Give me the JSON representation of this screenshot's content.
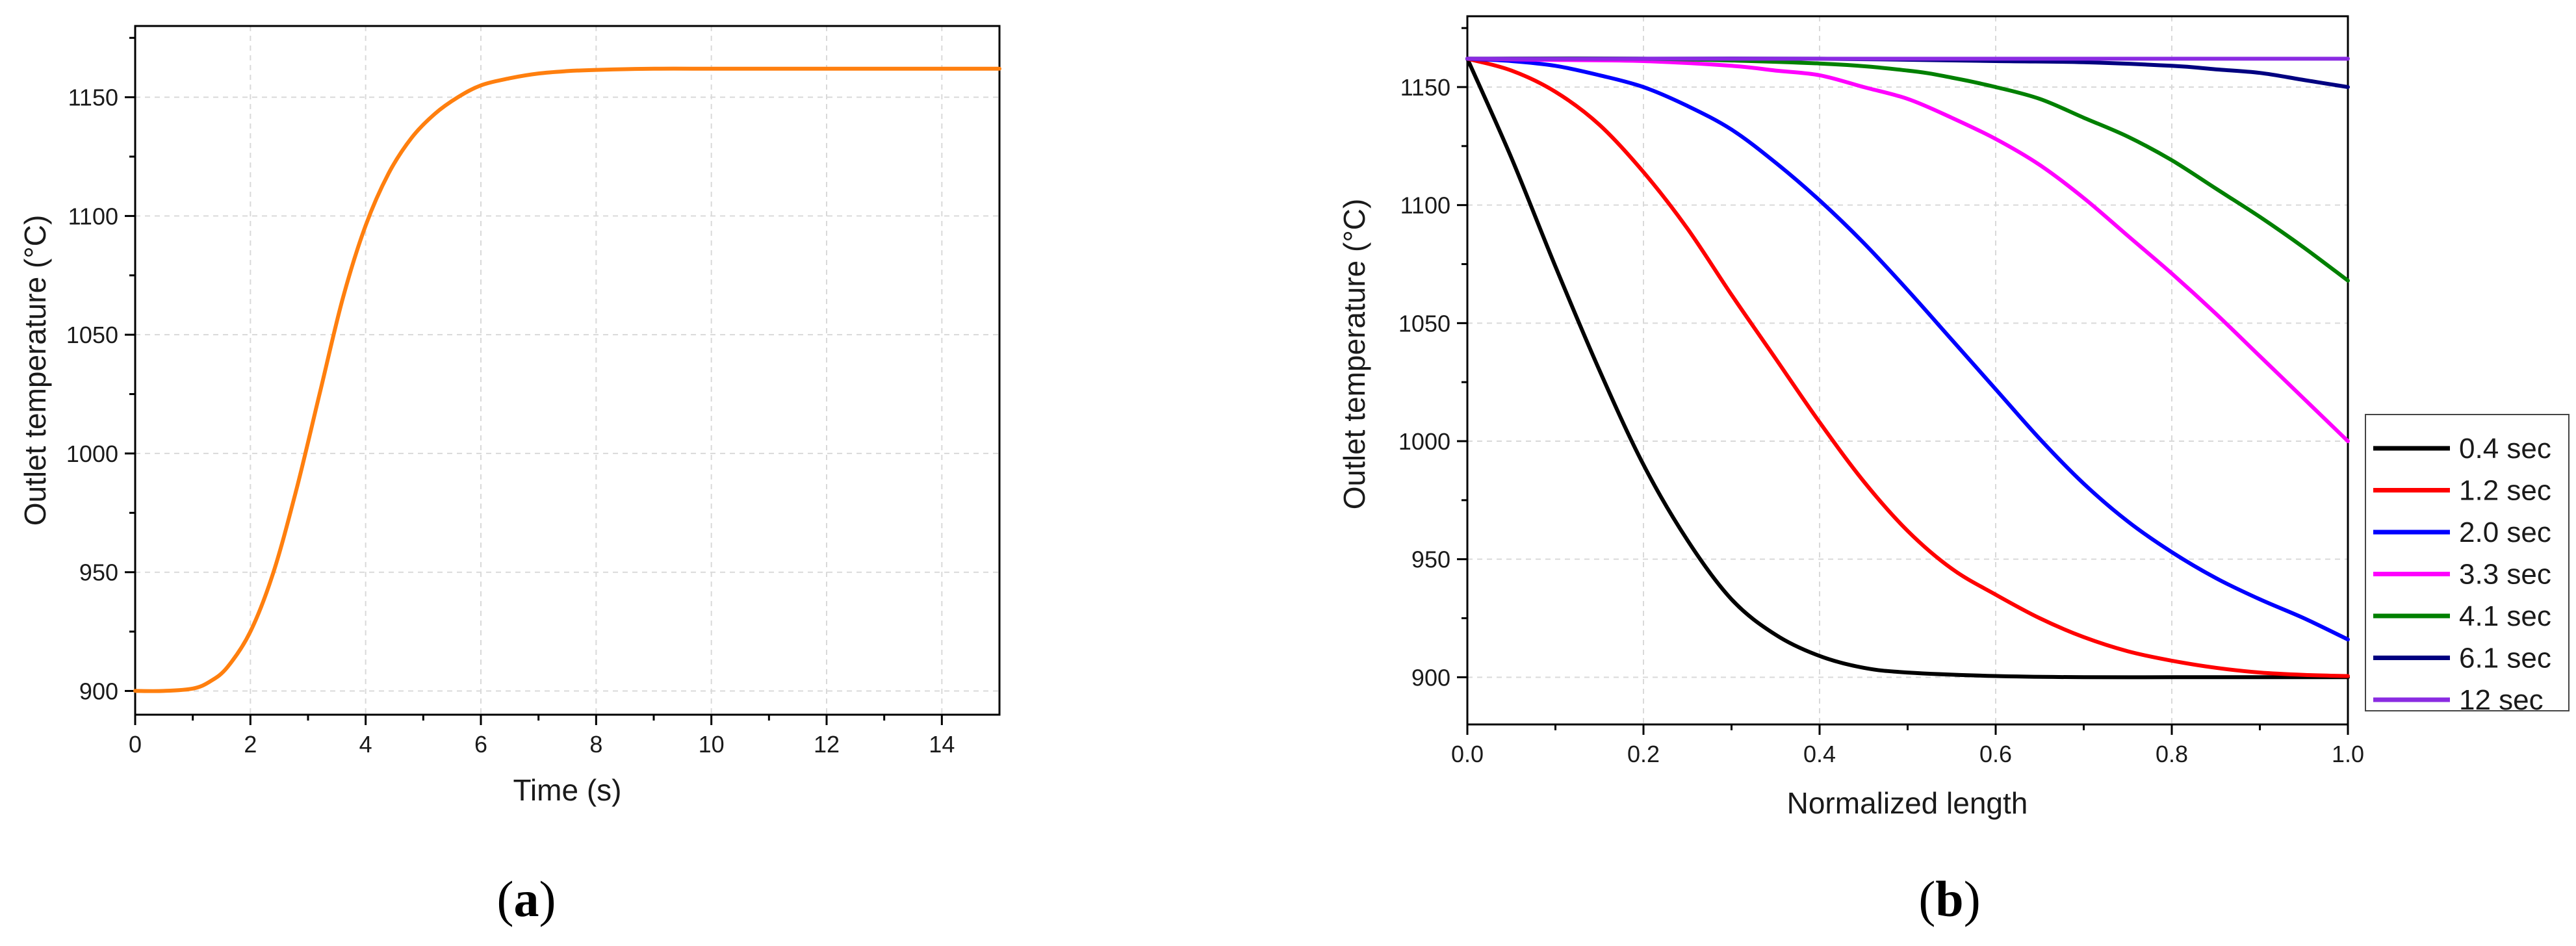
{
  "chart_data": [
    {
      "type": "line",
      "panel_label": "a",
      "xlabel": "Time (s)",
      "ylabel": "Outlet temperature (°C)",
      "xlim": [
        0,
        15
      ],
      "ylim": [
        890,
        1180
      ],
      "xticks": [
        0,
        2,
        4,
        6,
        8,
        10,
        12,
        14
      ],
      "xtick_labels": [
        "0",
        "2",
        "4",
        "6",
        "8",
        "10",
        "12",
        "14"
      ],
      "yticks": [
        900,
        950,
        1000,
        1050,
        1100,
        1150
      ],
      "ytick_labels": [
        "900",
        "950",
        "1000",
        "1050",
        "1100",
        "1150"
      ],
      "grid": true,
      "series": [
        {
          "name": "Outlet temperature",
          "color": "#ff7f0e",
          "x": [
            0,
            0.5,
            1.0,
            1.3,
            1.6,
            2.0,
            2.4,
            2.8,
            3.2,
            3.6,
            4.0,
            4.4,
            4.8,
            5.2,
            5.6,
            6.0,
            6.5,
            7.0,
            7.5,
            8.0,
            9.0,
            10.0,
            11.0,
            12.0,
            13.0,
            14.0,
            15.0
          ],
          "y": [
            900,
            900,
            901,
            904,
            910,
            925,
            950,
            985,
            1025,
            1065,
            1096,
            1118,
            1133,
            1143,
            1150,
            1155,
            1158,
            1160,
            1161,
            1161.5,
            1162,
            1162,
            1162,
            1162,
            1162,
            1162,
            1162
          ]
        }
      ]
    },
    {
      "type": "line",
      "panel_label": "b",
      "xlabel": "Normalized length",
      "ylabel": "Outlet temperature (°C)",
      "xlim": [
        0,
        1
      ],
      "ylim": [
        880,
        1180
      ],
      "xticks": [
        0.0,
        0.2,
        0.4,
        0.6,
        0.8,
        1.0
      ],
      "xtick_labels": [
        "0.0",
        "0.2",
        "0.4",
        "0.6",
        "0.8",
        "1.0"
      ],
      "yticks": [
        900,
        950,
        1000,
        1050,
        1100,
        1150
      ],
      "ytick_labels": [
        "900",
        "950",
        "1000",
        "1050",
        "1100",
        "1150"
      ],
      "grid": true,
      "legend_position": "outside-right",
      "series": [
        {
          "name": "0.4 sec",
          "color": "#000000",
          "x": [
            0,
            0.05,
            0.1,
            0.15,
            0.2,
            0.25,
            0.3,
            0.35,
            0.4,
            0.45,
            0.5,
            0.6,
            0.7,
            0.8,
            0.9,
            1.0
          ],
          "y": [
            1162,
            1120,
            1074,
            1030,
            990,
            958,
            933,
            918,
            909,
            904,
            902,
            900.5,
            900,
            900,
            900,
            900
          ]
        },
        {
          "name": "1.2 sec",
          "color": "#ff0000",
          "x": [
            0,
            0.05,
            0.1,
            0.15,
            0.2,
            0.25,
            0.3,
            0.35,
            0.4,
            0.45,
            0.5,
            0.55,
            0.6,
            0.65,
            0.7,
            0.75,
            0.8,
            0.85,
            0.9,
            0.95,
            1.0
          ],
          "y": [
            1162,
            1157,
            1148,
            1134,
            1114,
            1090,
            1062,
            1035,
            1008,
            983,
            962,
            946,
            935,
            925,
            917,
            911,
            907,
            904,
            902,
            901,
            900.5
          ]
        },
        {
          "name": "2.0 sec",
          "color": "#0000ff",
          "x": [
            0,
            0.05,
            0.1,
            0.15,
            0.2,
            0.25,
            0.3,
            0.35,
            0.4,
            0.45,
            0.5,
            0.55,
            0.6,
            0.65,
            0.7,
            0.75,
            0.8,
            0.85,
            0.9,
            0.95,
            1.0
          ],
          "y": [
            1162,
            1161,
            1159,
            1155,
            1150,
            1142,
            1132,
            1118,
            1102,
            1084,
            1064,
            1043,
            1022,
            1001,
            982,
            966,
            953,
            942,
            933,
            925,
            916
          ]
        },
        {
          "name": "3.3 sec",
          "color": "#ff00ff",
          "x": [
            0,
            0.1,
            0.2,
            0.3,
            0.35,
            0.4,
            0.45,
            0.5,
            0.55,
            0.6,
            0.65,
            0.7,
            0.75,
            0.8,
            0.85,
            0.9,
            0.95,
            1.0
          ],
          "y": [
            1162,
            1161.5,
            1161,
            1159,
            1157,
            1155,
            1150,
            1145,
            1137,
            1128,
            1117,
            1103,
            1087,
            1071,
            1054,
            1036,
            1018,
            1000
          ]
        },
        {
          "name": "4.1 sec",
          "color": "#008000",
          "x": [
            0,
            0.2,
            0.4,
            0.5,
            0.55,
            0.6,
            0.65,
            0.7,
            0.75,
            0.8,
            0.85,
            0.9,
            0.95,
            1.0
          ],
          "y": [
            1162,
            1162,
            1160,
            1157,
            1154,
            1150,
            1145,
            1137,
            1129,
            1119,
            1107,
            1095,
            1082,
            1068
          ]
        },
        {
          "name": "6.1 sec",
          "color": "#000080",
          "x": [
            0,
            0.2,
            0.4,
            0.6,
            0.7,
            0.8,
            0.85,
            0.9,
            0.95,
            1.0
          ],
          "y": [
            1162,
            1162,
            1162,
            1161,
            1160.5,
            1159,
            1157.5,
            1156,
            1153,
            1150
          ]
        },
        {
          "name": "12 sec",
          "color": "#8a2be2",
          "x": [
            0,
            0.5,
            1.0
          ],
          "y": [
            1162,
            1162,
            1162
          ]
        }
      ]
    }
  ]
}
